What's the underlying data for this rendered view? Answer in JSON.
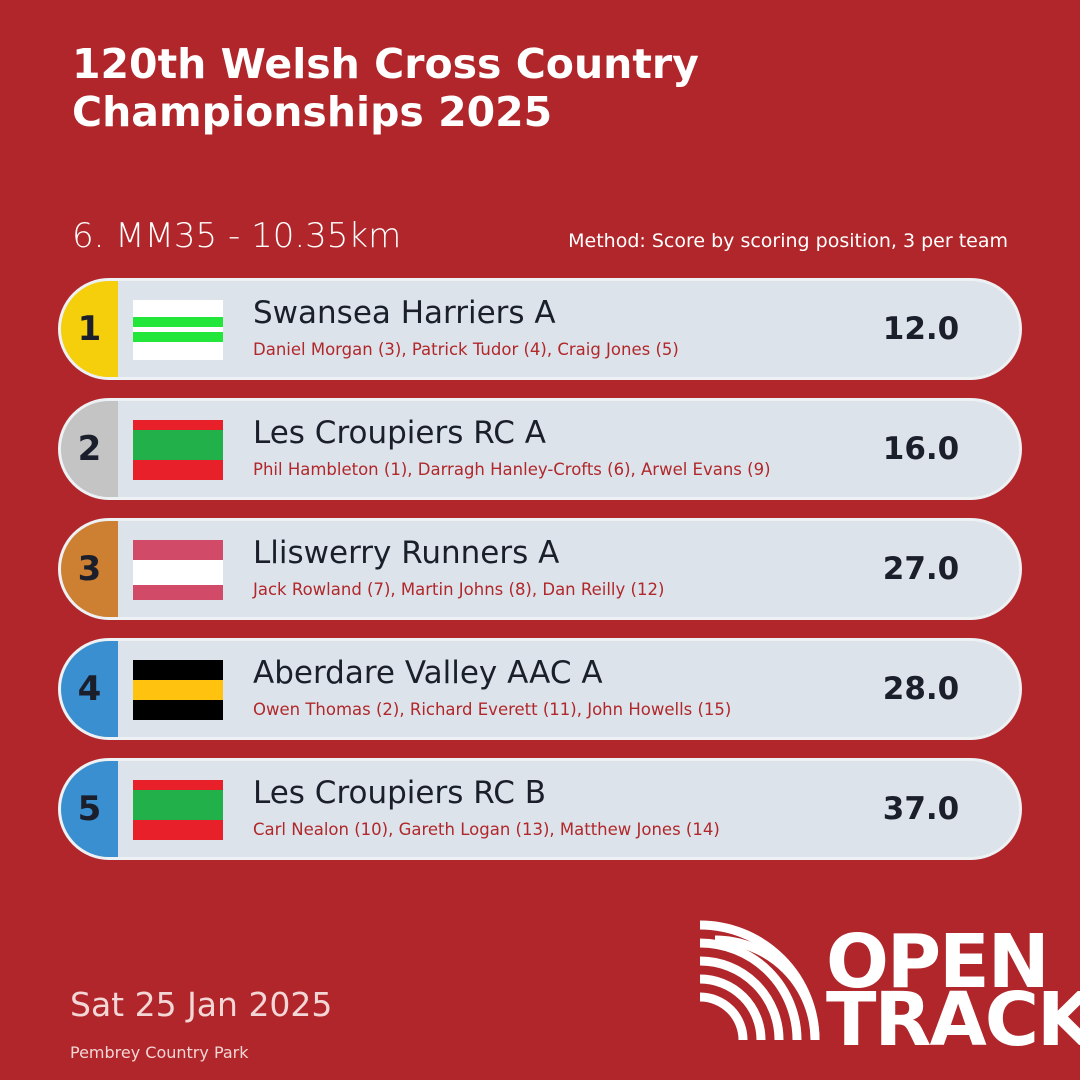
{
  "header": {
    "title": "120th Welsh Cross Country Championships 2025",
    "event": "6. MM35 - 10.35km",
    "method": "Method: Score by scoring position, 3 per team"
  },
  "results": [
    {
      "rank": 1,
      "team": "Swansea Harriers A",
      "runners": "Daniel Morgan (3), Patrick Tudor (4), Craig Jones (5)",
      "score": "12.0"
    },
    {
      "rank": 2,
      "team": "Les Croupiers RC A",
      "runners": "Phil Hambleton (1), Darragh Hanley-Crofts (6), Arwel Evans (9)",
      "score": "16.0"
    },
    {
      "rank": 3,
      "team": "Lliswerry Runners A",
      "runners": "Jack Rowland (7), Martin Johns (8), Dan Reilly (12)",
      "score": "27.0"
    },
    {
      "rank": 4,
      "team": "Aberdare Valley AAC A",
      "runners": "Owen Thomas (2), Richard Everett (11), John Howells (15)",
      "score": "28.0"
    },
    {
      "rank": 5,
      "team": "Les Croupiers RC B",
      "runners": "Carl Nealon (10), Gareth Logan (13), Matthew Jones (14)",
      "score": "37.0"
    }
  ],
  "footer": {
    "date": "Sat 25 Jan 2025",
    "venue": "Pembrey Country Park",
    "logo": [
      "OPEN",
      "TRACK"
    ]
  }
}
